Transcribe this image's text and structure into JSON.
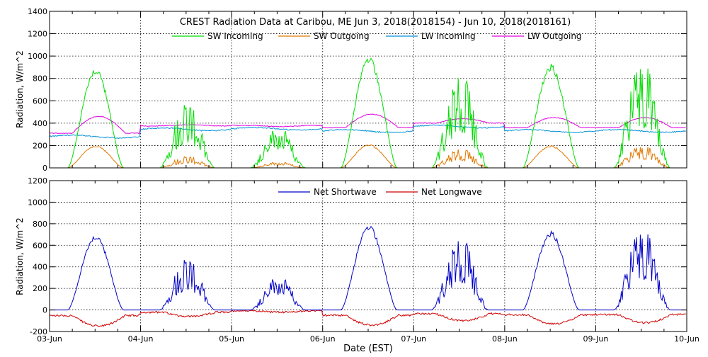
{
  "chart_data": [
    {
      "type": "line",
      "title": "CREST Radiation Data at Caribou, ME   Jun  3, 2018(2018154) - Jun 10, 2018(2018161)",
      "xlabel": "",
      "ylabel": "Radiation, W/m^2",
      "ylim": [
        0,
        1400
      ],
      "yticks": [
        0,
        200,
        400,
        600,
        800,
        1000,
        1200,
        1400
      ],
      "grid": true,
      "legend": "top",
      "days": [
        {
          "date": "03-Jun",
          "sw_in_peak": 900,
          "sw_out_peak": 200,
          "lw_in": 280,
          "lw_out_peak": 460,
          "sw_start_hour": 4.8,
          "sw_end_hour": 19.5
        },
        {
          "date": "04-Jun",
          "sw_in_peak": 620,
          "sw_out_peak": 110,
          "lw_in": 345,
          "lw_out_peak": 385,
          "sw_start_hour": 5.0,
          "sw_end_hour": 19.5
        },
        {
          "date": "05-Jun",
          "sw_in_peak": 380,
          "sw_out_peak": 55,
          "lw_in": 350,
          "lw_out_peak": 370,
          "sw_start_hour": 5.0,
          "sw_end_hour": 19.5
        },
        {
          "date": "06-Jun",
          "sw_in_peak": 1000,
          "sw_out_peak": 210,
          "lw_in": 330,
          "lw_out_peak": 480,
          "sw_start_hour": 4.8,
          "sw_end_hour": 19.6
        },
        {
          "date": "07-Jun",
          "sw_in_peak": 880,
          "sw_out_peak": 180,
          "lw_in": 370,
          "lw_out_peak": 440,
          "sw_start_hour": 4.8,
          "sw_end_hour": 19.6
        },
        {
          "date": "08-Jun",
          "sw_in_peak": 930,
          "sw_out_peak": 200,
          "lw_in": 330,
          "lw_out_peak": 450,
          "sw_start_hour": 4.8,
          "sw_end_hour": 19.6
        },
        {
          "date": "09-Jun",
          "sw_in_peak": 1000,
          "sw_out_peak": 210,
          "lw_in": 330,
          "lw_out_peak": 450,
          "sw_start_hour": 4.8,
          "sw_end_hour": 19.6
        }
      ],
      "series": [
        {
          "name": "SW Incoming",
          "color": "#00dd00"
        },
        {
          "name": "SW Outgoing",
          "color": "#e07800"
        },
        {
          "name": "LW Incoming",
          "color": "#0090d8"
        },
        {
          "name": "LW Outgoing",
          "color": "#e000e0"
        }
      ]
    },
    {
      "type": "line",
      "title": "",
      "xlabel": "Date (EST)",
      "ylabel": "Radiation, W/m^2",
      "ylim": [
        -200,
        1200
      ],
      "yticks": [
        -200,
        0,
        200,
        400,
        600,
        800,
        1000,
        1200
      ],
      "grid": true,
      "legend": "top",
      "categories": [
        "03-Jun",
        "04-Jun",
        "05-Jun",
        "06-Jun",
        "07-Jun",
        "08-Jun",
        "09-Jun",
        "10-Jun"
      ],
      "days": [
        {
          "date": "03-Jun",
          "net_sw_peak": 700,
          "net_lw_min": -150
        },
        {
          "date": "04-Jun",
          "net_sw_peak": 500,
          "net_lw_min": -60
        },
        {
          "date": "05-Jun",
          "net_sw_peak": 250,
          "net_lw_min": -20
        },
        {
          "date": "06-Jun",
          "net_sw_peak": 790,
          "net_lw_min": -140
        },
        {
          "date": "07-Jun",
          "net_sw_peak": 690,
          "net_lw_min": -100
        },
        {
          "date": "08-Jun",
          "net_sw_peak": 730,
          "net_lw_min": -130
        },
        {
          "date": "09-Jun",
          "net_sw_peak": 780,
          "net_lw_min": -120
        }
      ],
      "series": [
        {
          "name": "Net Shortwave",
          "color": "#0000c8"
        },
        {
          "name": "Net Longwave",
          "color": "#d00000"
        }
      ]
    }
  ]
}
